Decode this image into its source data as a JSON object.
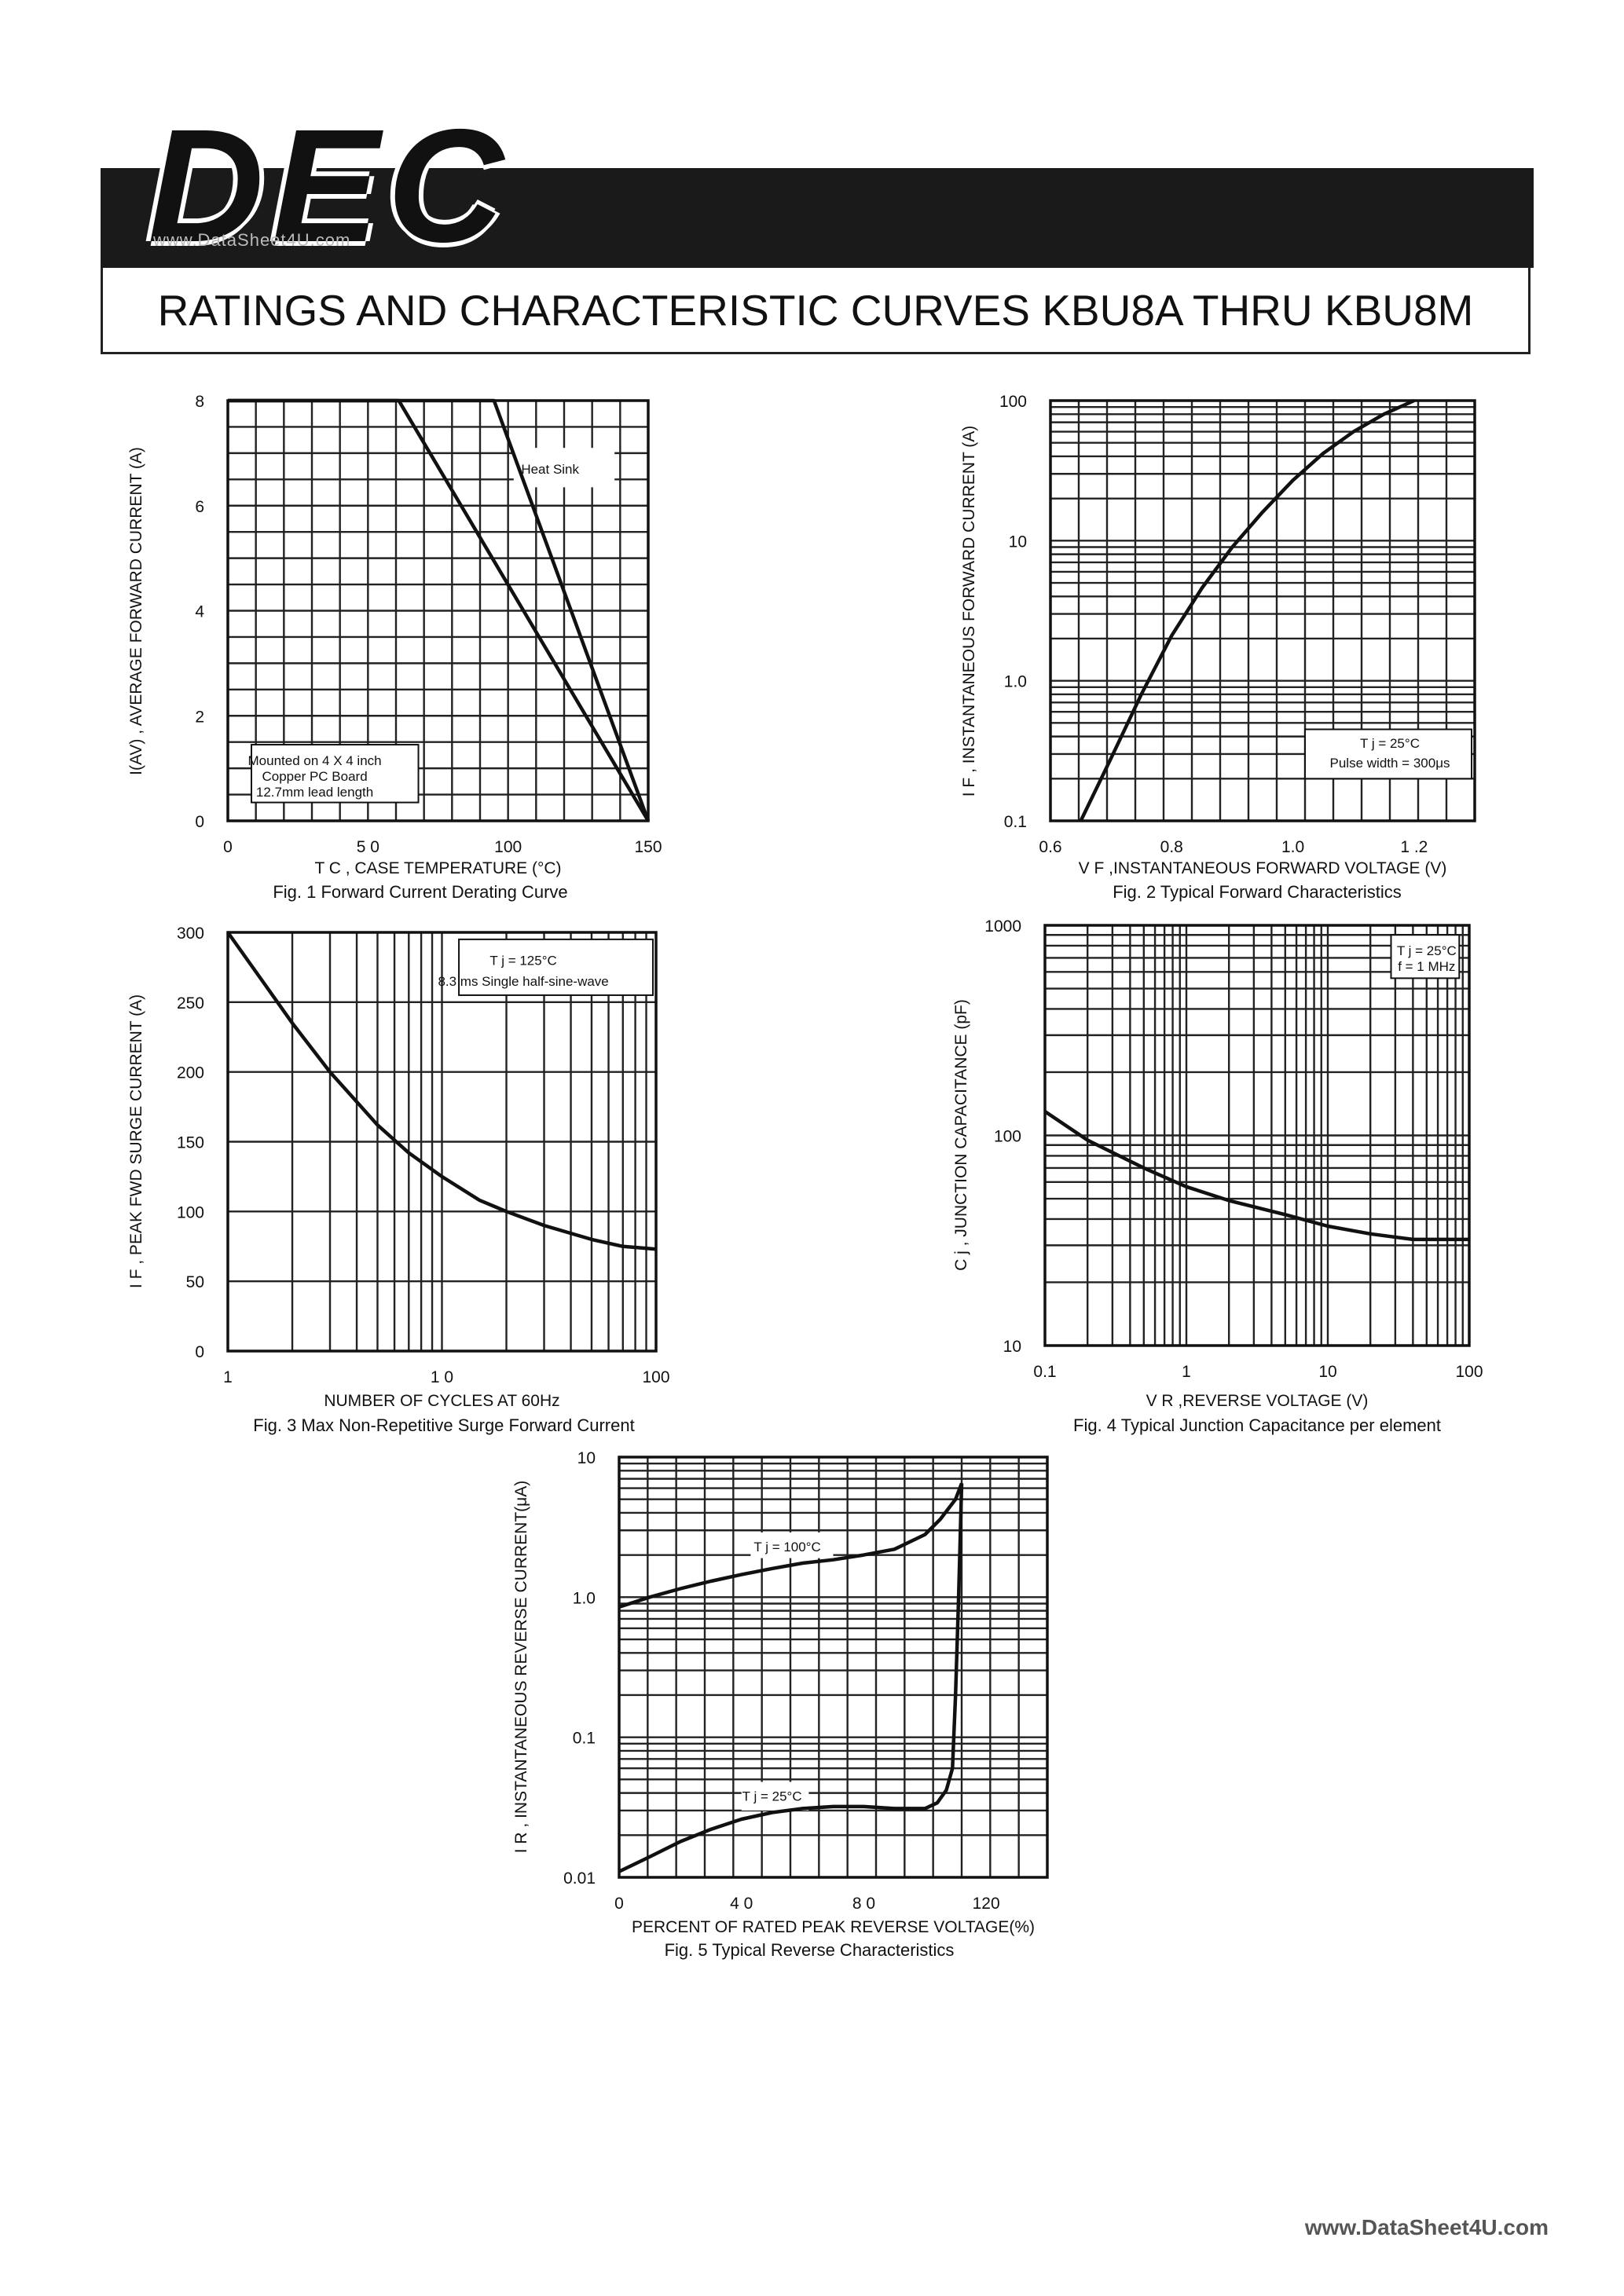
{
  "header": {
    "logo": "DEC",
    "watermark": "www.DataSheet4U.com",
    "title": "RATINGS AND CHARACTERISTIC CURVES KBU8A THRU KBU8M"
  },
  "footer": "www.DataSheet4U.com",
  "chart_data": [
    {
      "type": "line",
      "caption": "Fig. 1  Forward Current Derating Curve",
      "xlabel": "T C ,  CASE   TEMPERATURE (°C)",
      "ylabel": "I(AV) , AVERAGE  FORWARD  CURRENT (A)",
      "xlim": [
        0,
        150
      ],
      "ylim": [
        0,
        8
      ],
      "xticks": [
        {
          "v": 0,
          "label": "0"
        },
        {
          "v": 50,
          "label": "5 0"
        },
        {
          "v": 100,
          "label": "100"
        },
        {
          "v": 150,
          "label": "150"
        }
      ],
      "yticks": [
        {
          "v": 0,
          "label": "0"
        },
        {
          "v": 2,
          "label": "2"
        },
        {
          "v": 4,
          "label": "4"
        },
        {
          "v": 6,
          "label": "6"
        },
        {
          "v": 8,
          "label": "8"
        }
      ],
      "series": [
        {
          "name": "Heat Sink",
          "x": [
            0,
            95,
            150
          ],
          "y": [
            8,
            8,
            0
          ]
        },
        {
          "name": "Mounted on 4 X 4 inch Copper PC Board 12.7mm lead length",
          "x": [
            0,
            61,
            150
          ],
          "y": [
            8,
            8,
            0
          ]
        }
      ],
      "annotations": [
        {
          "text": "Heat Sink",
          "x": 115,
          "y": 6.7
        },
        {
          "text": "Mounted on 4 X 4 inch",
          "x": 31,
          "y": 1.15
        },
        {
          "text": "Copper PC Board",
          "x": 31,
          "y": 0.85
        },
        {
          "text": "12.7mm  lead    length",
          "x": 31,
          "y": 0.55
        }
      ],
      "grid": true
    },
    {
      "type": "line",
      "caption": "Fig. 2   Typical  Forward Characteristics",
      "xlabel": "V F ,INSTANTANEOUS  FORWARD  VOLTAGE  (V)",
      "ylabel": "I F , INSTANTANEOUS   FORWARD  CURRENT (A)",
      "xlim": [
        0.6,
        1.3
      ],
      "ylim": [
        0.1,
        100
      ],
      "ylog": true,
      "xticks": [
        {
          "v": 0.6,
          "label": "0.6"
        },
        {
          "v": 0.8,
          "label": "0.8"
        },
        {
          "v": 1.0,
          "label": "1.0"
        },
        {
          "v": 1.2,
          "label": "1 .2"
        }
      ],
      "yticks": [
        {
          "v": 0.1,
          "label": "0.1"
        },
        {
          "v": 1,
          "label": "1.0"
        },
        {
          "v": 10,
          "label": "10"
        },
        {
          "v": 100,
          "label": "100"
        }
      ],
      "series": [
        {
          "name": "",
          "x": [
            0.65,
            0.7,
            0.75,
            0.8,
            0.85,
            0.9,
            0.95,
            1.0,
            1.05,
            1.1,
            1.15,
            1.2
          ],
          "y": [
            0.1,
            0.28,
            0.8,
            2.1,
            4.6,
            9.0,
            16,
            27,
            42,
            60,
            80,
            100
          ]
        }
      ],
      "annotations": [
        {
          "text": "T j  = 25°C",
          "x": 1.16,
          "y": 0.36
        },
        {
          "text": "Pulse  width  = 300μs",
          "x": 1.16,
          "y": 0.26
        }
      ],
      "grid": true
    },
    {
      "type": "line",
      "caption": "Fig.  3   Max  Non-Repetitive   Surge Forward   Current",
      "xlabel": "NUMBER   OF   CYCLES   AT  60Hz",
      "ylabel": "I F , PEAK    FWD   SURGE  CURRENT (A)",
      "xlim": [
        1,
        100
      ],
      "xlog": true,
      "ylim": [
        0,
        300
      ],
      "xticks": [
        {
          "v": 1,
          "label": "1"
        },
        {
          "v": 10,
          "label": "1 0"
        },
        {
          "v": 100,
          "label": "100"
        }
      ],
      "yticks": [
        {
          "v": 0,
          "label": "0"
        },
        {
          "v": 50,
          "label": "50"
        },
        {
          "v": 100,
          "label": "100"
        },
        {
          "v": 150,
          "label": "150"
        },
        {
          "v": 200,
          "label": "200"
        },
        {
          "v": 250,
          "label": "250"
        },
        {
          "v": 300,
          "label": "300"
        }
      ],
      "series": [
        {
          "name": "",
          "x": [
            1,
            1.5,
            2,
            3,
            5,
            7,
            10,
            15,
            20,
            30,
            50,
            70,
            100
          ],
          "y": [
            300,
            262,
            235,
            200,
            162,
            142,
            125,
            108,
            100,
            90,
            80,
            75,
            73
          ]
        }
      ],
      "annotations": [
        {
          "text": "T j  =   125°C",
          "x": 24,
          "y": 280
        },
        {
          "text": "8.3 ms  Single  half-sine-wave",
          "x": 24,
          "y": 265
        }
      ],
      "grid": true
    },
    {
      "type": "line",
      "caption": "Fig. 4  Typical   Junction  Capacitance  per element",
      "xlabel": "V R ,REVERSE    VOLTAGE  (V)",
      "ylabel": "C j , JUNCTION CAPACITANCE (pF)",
      "xlim": [
        0.1,
        100
      ],
      "xlog": true,
      "ylim": [
        10,
        1000
      ],
      "ylog": true,
      "xticks": [
        {
          "v": 0.1,
          "label": "0.1"
        },
        {
          "v": 1,
          "label": "1"
        },
        {
          "v": 10,
          "label": "10"
        },
        {
          "v": 100,
          "label": "100"
        }
      ],
      "yticks": [
        {
          "v": 10,
          "label": "10"
        },
        {
          "v": 100,
          "label": "100"
        },
        {
          "v": 1000,
          "label": "1000"
        }
      ],
      "series": [
        {
          "name": "",
          "x": [
            0.1,
            0.2,
            0.5,
            1,
            2,
            5,
            10,
            20,
            40,
            100
          ],
          "y": [
            130,
            95,
            70,
            57,
            49,
            42,
            37,
            34,
            32,
            32
          ]
        }
      ],
      "annotations": [
        {
          "text": "T j  = 25°C",
          "x": 50,
          "y": 760
        },
        {
          "text": "f  = 1 MHz",
          "x": 50,
          "y": 640
        }
      ],
      "grid": true
    },
    {
      "type": "line",
      "caption": "Fig. 5     Typical    Reverse    Characteristics",
      "xlabel": "PERCENT  OF  RATED PEAK  REVERSE  VOLTAGE(%)",
      "ylabel": "I R , INSTANTANEOUS   REVERSE  CURRENT(μA)",
      "xlim": [
        0,
        140
      ],
      "ylim": [
        0.01,
        10
      ],
      "ylog": true,
      "xticks": [
        {
          "v": 0,
          "label": "0"
        },
        {
          "v": 40,
          "label": "4 0"
        },
        {
          "v": 80,
          "label": "8 0"
        },
        {
          "v": 120,
          "label": "120"
        }
      ],
      "yticks": [
        {
          "v": 0.01,
          "label": "0.01"
        },
        {
          "v": 0.1,
          "label": "0.1"
        },
        {
          "v": 1,
          "label": "1.0"
        },
        {
          "v": 10,
          "label": "10"
        }
      ],
      "series": [
        {
          "name": "T j  = 100°C",
          "x": [
            0,
            10,
            20,
            30,
            40,
            50,
            60,
            70,
            80,
            90,
            100,
            105,
            110,
            112
          ],
          "y": [
            0.85,
            1.0,
            1.15,
            1.3,
            1.45,
            1.6,
            1.75,
            1.85,
            2.0,
            2.2,
            2.8,
            3.6,
            5.0,
            6.5
          ]
        },
        {
          "name": "T j  = 25°C",
          "x": [
            0,
            10,
            20,
            30,
            40,
            50,
            60,
            70,
            80,
            90,
            100,
            104,
            107,
            109,
            110,
            111,
            112
          ],
          "y": [
            0.011,
            0.014,
            0.018,
            0.022,
            0.026,
            0.029,
            0.031,
            0.032,
            0.032,
            0.031,
            0.031,
            0.034,
            0.042,
            0.06,
            0.2,
            1.0,
            6.5
          ]
        }
      ],
      "annotations": [
        {
          "text": "T j  = 100°C",
          "x": 55,
          "y": 2.3
        },
        {
          "text": "T j  = 25°C",
          "x": 50,
          "y": 0.038
        }
      ],
      "grid": true
    }
  ]
}
